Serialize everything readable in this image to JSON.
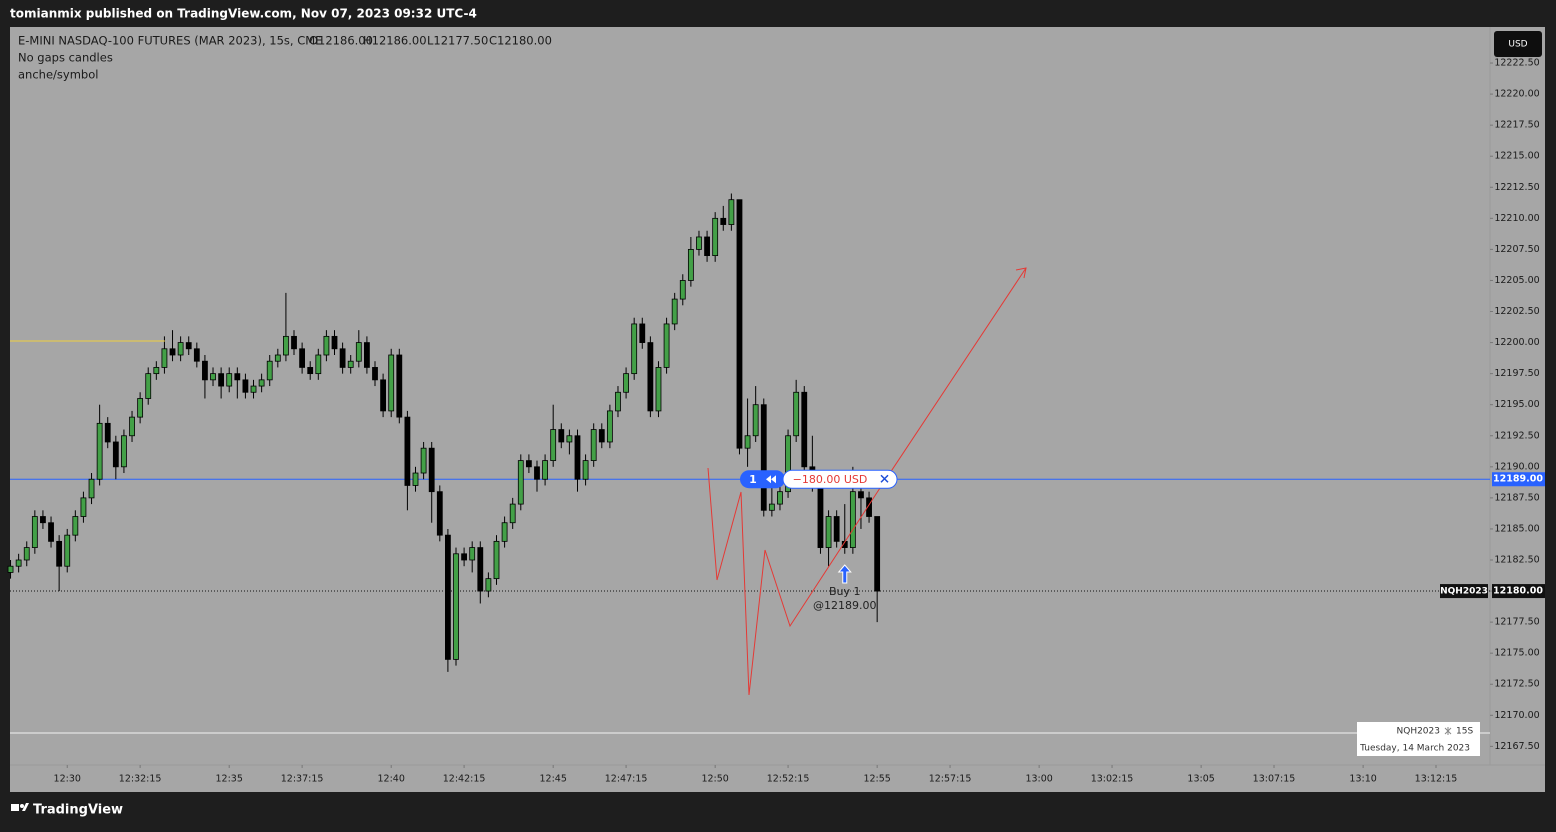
{
  "header": "tomianmix published on TradingView.com, Nov 07, 2023 09:32 UTC-4",
  "footer": "TradingView",
  "chart_data": {
    "type": "candlestick",
    "title": "E-MINI NASDAQ-100 FUTURES (MAR 2023), 15s, CME",
    "ohlc_legend": [
      "O12186.00",
      "H12186.00",
      "L12177.50",
      "C12180.00"
    ],
    "indicators": [
      "No gaps candles",
      "anche/symbol"
    ],
    "currency": "USD",
    "up_color": "#43a047",
    "down_color": "#000000",
    "x": [
      "12:28:15",
      "12:28:30",
      "12:28:45",
      "12:29:00",
      "12:29:15",
      "12:29:30",
      "12:29:45",
      "12:30:00",
      "12:30:15",
      "12:30:30",
      "12:30:45",
      "12:31:00",
      "12:31:15",
      "12:31:30",
      "12:31:45",
      "12:32:00",
      "12:32:15",
      "12:32:30",
      "12:32:45",
      "12:33:00",
      "12:33:15",
      "12:33:30",
      "12:33:45",
      "12:34:00",
      "12:34:15",
      "12:34:30",
      "12:34:45",
      "12:35:00",
      "12:35:15",
      "12:35:30",
      "12:35:45",
      "12:36:00",
      "12:36:15",
      "12:36:30",
      "12:36:45",
      "12:37:00",
      "12:37:15",
      "12:37:30",
      "12:37:45",
      "12:38:00",
      "12:38:15",
      "12:38:30",
      "12:38:45",
      "12:39:00",
      "12:39:15",
      "12:39:30",
      "12:39:45",
      "12:40:00",
      "12:40:15",
      "12:40:30",
      "12:40:45",
      "12:41:00",
      "12:41:15",
      "12:41:30",
      "12:41:45",
      "12:42:00",
      "12:42:15",
      "12:42:30",
      "12:42:45",
      "12:43:00",
      "12:43:15",
      "12:43:30",
      "12:43:45",
      "12:44:00",
      "12:44:15",
      "12:44:30",
      "12:44:45",
      "12:45:00",
      "12:45:15",
      "12:45:30",
      "12:45:45",
      "12:46:00",
      "12:46:15",
      "12:46:30",
      "12:46:45",
      "12:47:00",
      "12:47:15",
      "12:47:30",
      "12:47:45",
      "12:48:00",
      "12:48:15",
      "12:48:30",
      "12:48:45",
      "12:49:00",
      "12:49:15",
      "12:49:30",
      "12:49:45",
      "12:50:00",
      "12:50:15",
      "12:50:30",
      "12:50:45",
      "12:51:00",
      "12:51:15",
      "12:51:30",
      "12:51:45",
      "12:52:00",
      "12:52:15",
      "12:52:30",
      "12:52:45",
      "12:53:00",
      "12:53:15",
      "12:53:30",
      "12:53:45",
      "12:54:00",
      "12:54:15",
      "12:54:30",
      "12:54:45",
      "12:55:00"
    ],
    "open": [
      12181.5,
      12182.0,
      12182.5,
      12183.5,
      12186.0,
      12185.5,
      12184.0,
      12182.0,
      12184.5,
      12186.0,
      12187.5,
      12189.0,
      12193.5,
      12192.0,
      12190.0,
      12192.5,
      12194.0,
      12195.5,
      12197.5,
      12198.0,
      12199.5,
      12199.0,
      12200.0,
      12199.5,
      12198.5,
      12197.0,
      12197.5,
      12196.5,
      12197.5,
      12197.0,
      12196.0,
      12196.5,
      12197.0,
      12198.5,
      12199.0,
      12200.5,
      12199.5,
      12198.0,
      12197.5,
      12199.0,
      12200.5,
      12199.5,
      12198.0,
      12198.5,
      12200.0,
      12198.0,
      12197.0,
      12194.5,
      12199.0,
      12194.0,
      12188.5,
      12189.5,
      12191.5,
      12188.0,
      12184.5,
      12174.5,
      12183.0,
      12182.5,
      12183.5,
      12180.0,
      12181.0,
      12184.0,
      12185.5,
      12187.0,
      12190.5,
      12190.0,
      12189.0,
      12190.5,
      12193.0,
      12192.0,
      12192.5,
      12189.0,
      12190.5,
      12193.0,
      12192.0,
      12194.5,
      12196.0,
      12197.5,
      12201.5,
      12200.0,
      12194.5,
      12198.0,
      12201.5,
      12203.5,
      12205.0,
      12207.5,
      12208.5,
      12207.0,
      12210.0,
      12209.5,
      12211.5,
      12191.5,
      12192.5,
      12195.0,
      12186.5,
      12187.0,
      12188.0,
      12192.5,
      12196.0,
      12190.0,
      12188.5,
      12183.5,
      12186.0,
      12184.0,
      12183.5,
      12188.0,
      12187.5,
      12186.0
    ],
    "high": [
      12182.5,
      12183.0,
      12184.0,
      12186.5,
      12186.5,
      12186.0,
      12184.5,
      12185.0,
      12186.5,
      12188.0,
      12189.5,
      12195.0,
      12194.0,
      12192.5,
      12193.0,
      12194.5,
      12196.0,
      12198.0,
      12198.5,
      12200.5,
      12201.0,
      12200.5,
      12200.5,
      12200.0,
      12199.0,
      12198.0,
      12198.0,
      12198.0,
      12198.0,
      12197.5,
      12197.0,
      12197.5,
      12199.0,
      12199.5,
      12204.0,
      12201.0,
      12200.0,
      12198.5,
      12199.5,
      12201.0,
      12201.0,
      12200.0,
      12199.0,
      12201.0,
      12200.5,
      12198.5,
      12197.5,
      12199.5,
      12199.5,
      12194.5,
      12190.0,
      12192.0,
      12192.0,
      12188.5,
      12185.0,
      12183.5,
      12183.5,
      12184.0,
      12184.0,
      12181.5,
      12184.5,
      12186.0,
      12187.5,
      12191.0,
      12191.0,
      12190.5,
      12191.0,
      12195.0,
      12193.5,
      12193.0,
      12193.0,
      12191.0,
      12193.5,
      12193.5,
      12195.0,
      12196.5,
      12198.0,
      12202.0,
      12202.0,
      12200.5,
      12198.5,
      12202.0,
      12204.0,
      12205.5,
      12208.5,
      12209.0,
      12209.0,
      12210.5,
      12211.0,
      12212.0,
      12211.5,
      12195.5,
      12196.5,
      12195.5,
      12188.5,
      12189.0,
      12193.0,
      12197.0,
      12196.5,
      12192.5,
      12189.0,
      12186.5,
      12186.5,
      12187.0,
      12190.0,
      12188.5,
      12188.0,
      12186.0
    ],
    "low": [
      12181.0,
      12181.5,
      12182.0,
      12183.0,
      12185.0,
      12183.5,
      12180.0,
      12181.5,
      12184.0,
      12185.5,
      12187.0,
      12188.5,
      12191.5,
      12189.0,
      12189.5,
      12192.0,
      12193.5,
      12195.0,
      12197.0,
      12197.5,
      12198.5,
      12198.5,
      12199.0,
      12198.0,
      12195.5,
      12196.5,
      12195.5,
      12196.0,
      12195.5,
      12195.5,
      12195.5,
      12196.0,
      12196.5,
      12198.0,
      12198.5,
      12199.0,
      12197.5,
      12197.0,
      12197.0,
      12198.5,
      12199.0,
      12197.5,
      12197.5,
      12198.0,
      12197.5,
      12196.5,
      12194.0,
      12194.0,
      12193.5,
      12186.5,
      12188.0,
      12189.0,
      12185.5,
      12184.0,
      12173.5,
      12174.0,
      12182.0,
      12181.5,
      12179.0,
      12179.5,
      12180.5,
      12183.5,
      12185.0,
      12186.5,
      12189.5,
      12188.0,
      12188.5,
      12190.0,
      12191.5,
      12191.0,
      12188.0,
      12188.5,
      12190.0,
      12191.5,
      12191.5,
      12194.0,
      12195.5,
      12197.0,
      12199.5,
      12194.0,
      12194.0,
      12197.5,
      12201.0,
      12203.0,
      12204.5,
      12207.0,
      12206.5,
      12206.5,
      12209.0,
      12209.0,
      12191.0,
      12190.0,
      12192.0,
      12186.0,
      12186.0,
      12186.5,
      12187.5,
      12192.0,
      12189.5,
      12188.0,
      12183.0,
      12182.0,
      12183.5,
      12183.0,
      12183.0,
      12185.0,
      12185.5,
      12177.5
    ],
    "close": [
      12182.0,
      12182.5,
      12183.5,
      12186.0,
      12185.5,
      12184.0,
      12182.0,
      12184.5,
      12186.0,
      12187.5,
      12189.0,
      12193.5,
      12192.0,
      12190.0,
      12192.5,
      12194.0,
      12195.5,
      12197.5,
      12198.0,
      12199.5,
      12199.0,
      12200.0,
      12199.5,
      12198.5,
      12197.0,
      12197.5,
      12196.5,
      12197.5,
      12197.0,
      12196.0,
      12196.5,
      12197.0,
      12198.5,
      12199.0,
      12200.5,
      12199.5,
      12198.0,
      12197.5,
      12199.0,
      12200.5,
      12199.5,
      12198.0,
      12198.5,
      12200.0,
      12198.0,
      12197.0,
      12194.5,
      12199.0,
      12194.0,
      12188.5,
      12189.5,
      12191.5,
      12188.0,
      12184.5,
      12174.5,
      12183.0,
      12182.5,
      12183.5,
      12180.0,
      12181.0,
      12184.0,
      12185.5,
      12187.0,
      12190.5,
      12190.0,
      12189.0,
      12190.5,
      12193.0,
      12192.0,
      12192.5,
      12189.0,
      12190.5,
      12193.0,
      12192.0,
      12194.5,
      12196.0,
      12197.5,
      12201.5,
      12200.0,
      12194.5,
      12198.0,
      12201.5,
      12203.5,
      12205.0,
      12207.5,
      12208.5,
      12207.0,
      12210.0,
      12209.5,
      12211.5,
      12191.5,
      12192.5,
      12195.0,
      12186.5,
      12187.0,
      12188.0,
      12192.5,
      12196.0,
      12190.0,
      12188.5,
      12183.5,
      12186.0,
      12184.0,
      12183.5,
      12188.0,
      12187.5,
      12186.0,
      12180.0
    ],
    "xlim": [
      "12:28:14",
      "13:13:55"
    ],
    "xticks": [
      "12:30",
      "12:32:15",
      "12:35",
      "12:37:15",
      "12:40",
      "12:42:15",
      "12:45",
      "12:47:15",
      "12:50",
      "12:52:15",
      "12:55",
      "12:57:15",
      "13:00",
      "13:02:15",
      "13:05",
      "13:07:15",
      "13:10",
      "13:12:15"
    ],
    "ylim": [
      12166,
      12225.4
    ],
    "yticks": [
      {
        "value": 12167.5,
        "label": "12167.50"
      },
      {
        "value": 12170,
        "label": "12170.00"
      },
      {
        "value": 12172.5,
        "label": "12172.50"
      },
      {
        "value": 12175,
        "label": "12175.00"
      },
      {
        "value": 12177.5,
        "label": "12177.50"
      },
      {
        "value": 12180,
        "label": "12180.00"
      },
      {
        "value": 12182.5,
        "label": "12182.50"
      },
      {
        "value": 12185,
        "label": "12185.00"
      },
      {
        "value": 12187.5,
        "label": "12187.50"
      },
      {
        "value": 12190,
        "label": "12190.00"
      },
      {
        "value": 12192.5,
        "label": "12192.50"
      },
      {
        "value": 12195,
        "label": "12195.00"
      },
      {
        "value": 12197.5,
        "label": "12197.50"
      },
      {
        "value": 12200,
        "label": "12200.00"
      },
      {
        "value": 12202.5,
        "label": "12202.50"
      },
      {
        "value": 12205,
        "label": "12205.00"
      },
      {
        "value": 12207.5,
        "label": "12207.50"
      },
      {
        "value": 12210,
        "label": "12210.00"
      },
      {
        "value": 12212.5,
        "label": "12212.50"
      },
      {
        "value": 12215,
        "label": "12215.00"
      },
      {
        "value": 12217.5,
        "label": "12217.50"
      },
      {
        "value": 12220,
        "label": "12220.00"
      },
      {
        "value": 12222.5,
        "label": "12222.50"
      }
    ],
    "position": {
      "value": 12189,
      "label": "12189.00",
      "quantity": "1",
      "pnl": "−180.00 USD",
      "color": "#2962ff"
    },
    "last_price": {
      "value": 12180,
      "label": "12180.00",
      "symbol": "NQH2023"
    },
    "buy_marker": {
      "x": "12:54:00",
      "text": "Buy 1",
      "price_label": "@12189.00"
    },
    "info_box": {
      "symbol": "NQH2023",
      "interval": "15S",
      "date": "Tuesday, 14 March 2023"
    }
  }
}
